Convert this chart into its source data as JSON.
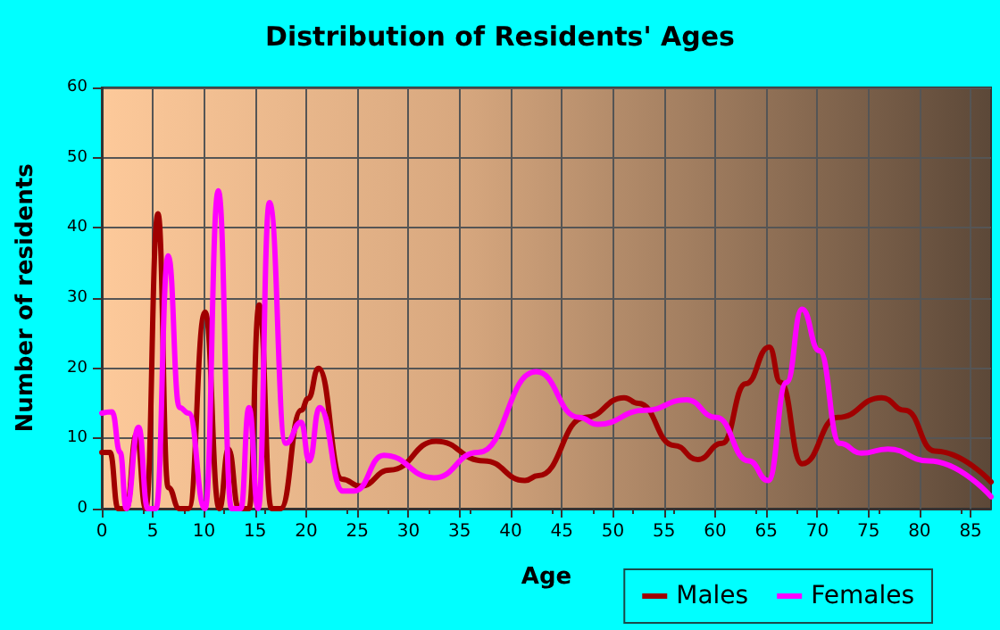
{
  "chart_data": {
    "type": "line",
    "title": "Distribution of Residents' Ages",
    "xlabel": "Age",
    "ylabel": "Number of residents",
    "xlim": [
      0,
      87
    ],
    "xticks": [
      0,
      5,
      10,
      15,
      20,
      25,
      30,
      35,
      40,
      45,
      50,
      55,
      60,
      65,
      70,
      75,
      80,
      85
    ],
    "ylim": [
      0,
      60
    ],
    "yticks": [
      0,
      10,
      20,
      30,
      40,
      50,
      60
    ],
    "grid": true,
    "legend": "bottom right",
    "marker": "none",
    "line_style": "solid",
    "series": [
      {
        "name": "Males",
        "color": "#a00000",
        "x": [
          0,
          0.8,
          1.6,
          2.4,
          3.4,
          4.3,
          5.5,
          6.5,
          7.6,
          8.5,
          10.1,
          11.5,
          12.4,
          13.4,
          14.4,
          15.4,
          16.6,
          17.5,
          19.5,
          20.2,
          21.2,
          23.5,
          25.3,
          28.2,
          32.7,
          37.4,
          41.4,
          42.7,
          47.3,
          51.1,
          52.5,
          56,
          58.3,
          60.7,
          63,
          65.3,
          66.4,
          68.5,
          72,
          76.3,
          78.6,
          81.5,
          87
        ],
        "values": [
          8,
          8,
          0,
          0,
          10.6,
          0,
          42,
          3,
          0,
          0,
          28,
          0,
          8.5,
          0,
          0,
          29,
          0,
          0,
          14,
          15.7,
          20,
          4.2,
          3.2,
          5.5,
          9.6,
          6.8,
          4,
          4.7,
          13,
          15.8,
          15,
          9,
          7,
          9.3,
          17.8,
          23,
          18,
          6.4,
          13,
          15.8,
          14,
          8.2,
          3.8
        ]
      },
      {
        "name": "Females",
        "color": "#ff00ff",
        "x": [
          0,
          1,
          1.8,
          2.4,
          3.6,
          4.5,
          5.3,
          6.5,
          7.6,
          8.5,
          10.1,
          11.4,
          12.7,
          13.6,
          14.4,
          15.3,
          16.4,
          18,
          19.5,
          20.3,
          21.3,
          23.6,
          24.7,
          27.6,
          32.5,
          36.8,
          42.5,
          46.7,
          48.5,
          53.1,
          57.2,
          60.1,
          63.3,
          65.2,
          67,
          68.5,
          70.2,
          72.2,
          74.3,
          76.9,
          80.9,
          87
        ],
        "values": [
          13.6,
          13.8,
          8,
          0,
          11.6,
          0,
          0,
          36,
          14.4,
          13.6,
          0,
          45.3,
          0,
          0,
          14.4,
          0,
          43.6,
          9.3,
          12.3,
          6.8,
          14.4,
          2.5,
          2.5,
          7.6,
          4.4,
          8,
          19.5,
          13,
          12,
          14,
          15.5,
          13,
          6.8,
          4,
          18,
          28.4,
          22.5,
          9.3,
          7.9,
          8.5,
          6.8,
          1.7
        ]
      }
    ]
  }
}
